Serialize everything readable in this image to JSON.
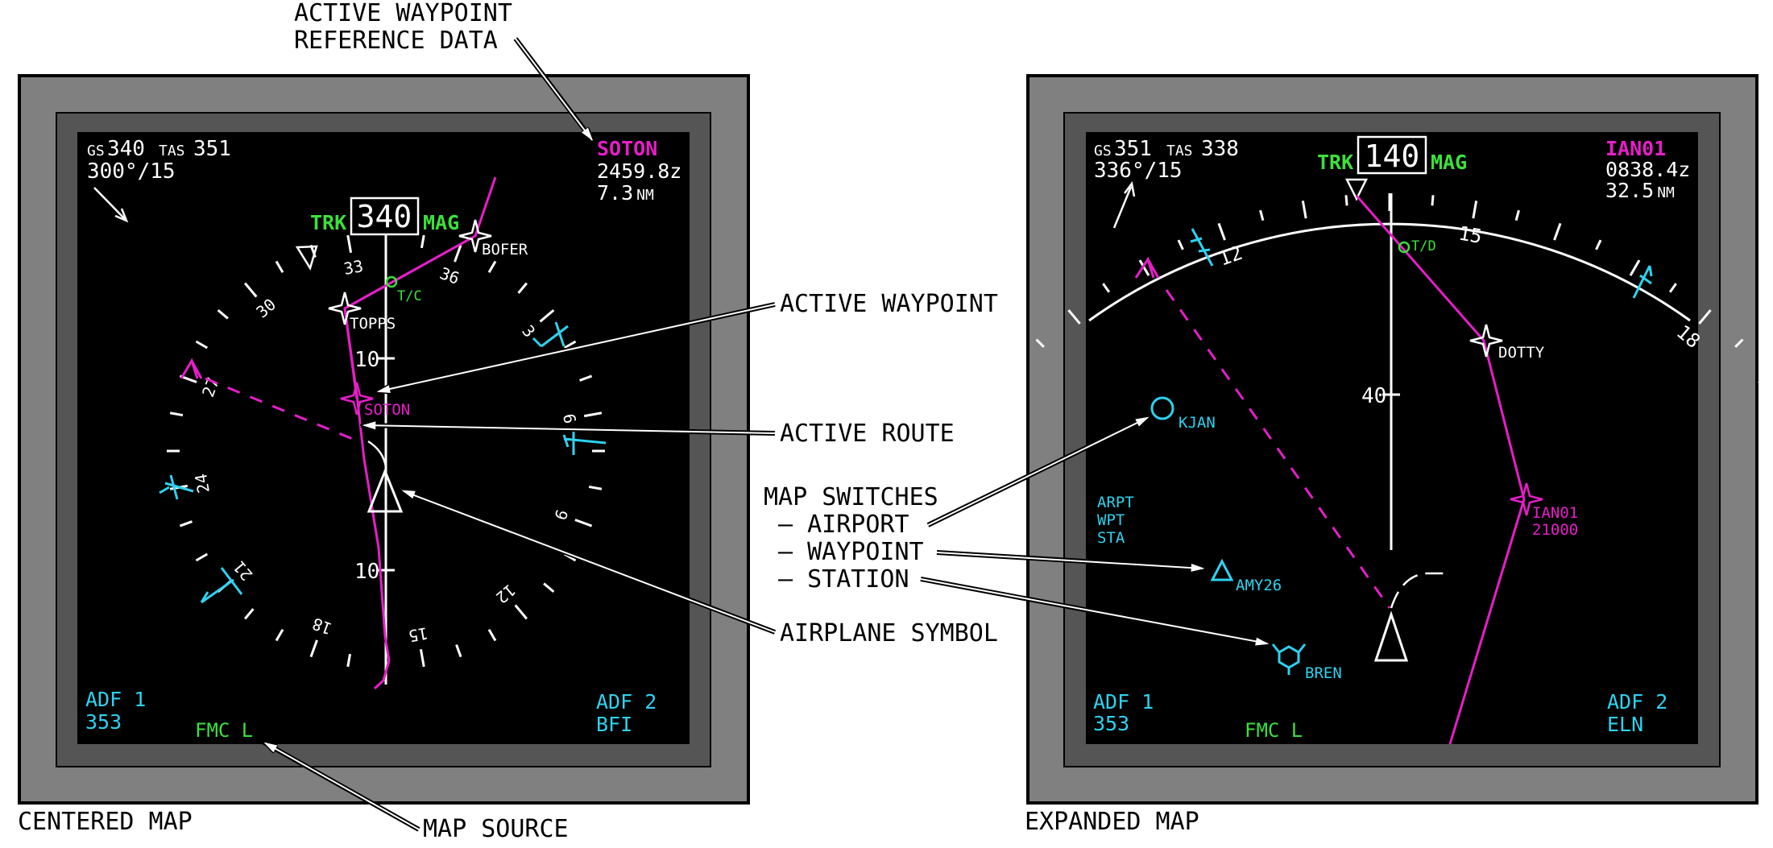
{
  "colors": {
    "magenta": "#e61ec8",
    "cyan": "#2ed2f0",
    "green": "#3ce03c",
    "white": "#ffffff",
    "bezel_outer": "#808080",
    "bezel_inner": "#555555",
    "screen": "#000000"
  },
  "callouts": {
    "active_waypoint_reference_data_line1": "ACTIVE WAYPOINT",
    "active_waypoint_reference_data_line2": "REFERENCE DATA",
    "active_waypoint": "ACTIVE WAYPOINT",
    "active_route": "ACTIVE ROUTE",
    "map_switches": "MAP SWITCHES",
    "airport": "– AIRPORT",
    "waypoint": "– WAYPOINT",
    "station": "– STATION",
    "airplane_symbol": "AIRPLANE SYMBOL",
    "map_source": "MAP SOURCE"
  },
  "centered_map": {
    "caption": "CENTERED MAP",
    "gs_label": "GS",
    "gs_value": "340",
    "tas_label": "TAS",
    "tas_value": "351",
    "wind": "300°/15",
    "trk_label": "TRK",
    "track_value": "340",
    "mag_label": "MAG",
    "waypoint_name": "SOTON",
    "waypoint_eta": "2459.8z",
    "waypoint_dist": "7.3",
    "waypoint_dist_unit": "NM",
    "range_upper": "10",
    "range_lower": "10",
    "adf1_label": "ADF 1",
    "adf1_value": "353",
    "adf2_label": "ADF 2",
    "adf2_value": "BFI",
    "map_source": "FMC L",
    "fix_topps": "TOPPS",
    "fix_bofer": "BOFER",
    "fix_soton": "SOTON",
    "tc_label": "T/C",
    "compass_labels": [
      "33",
      "36",
      "3",
      "6",
      "9",
      "12",
      "15",
      "18",
      "21",
      "24",
      "27",
      "30"
    ]
  },
  "expanded_map": {
    "caption": "EXPANDED MAP",
    "gs_label": "GS",
    "gs_value": "351",
    "tas_label": "TAS",
    "tas_value": "338",
    "wind": "336°/15",
    "trk_label": "TRK",
    "track_value": "140",
    "mag_label": "MAG",
    "waypoint_name": "IAN01",
    "waypoint_eta": "0838.4z",
    "waypoint_dist": "32.5",
    "waypoint_dist_unit": "NM",
    "range_mark": "40",
    "adf1_label": "ADF 1",
    "adf1_value": "353",
    "adf2_label": "ADF 2",
    "adf2_value": "ELN",
    "map_source": "FMC L",
    "switches": [
      "ARPT",
      "WPT",
      "STA"
    ],
    "fix_dotty": "DOTTY",
    "fix_ian01": "IAN01",
    "fix_ian01_alt": "21000",
    "td_label": "T/D",
    "airport_name": "KJAN",
    "waypoint_name2": "AMY26",
    "station_name": "BREN",
    "arc_labels": [
      "12",
      "15",
      "18"
    ]
  }
}
